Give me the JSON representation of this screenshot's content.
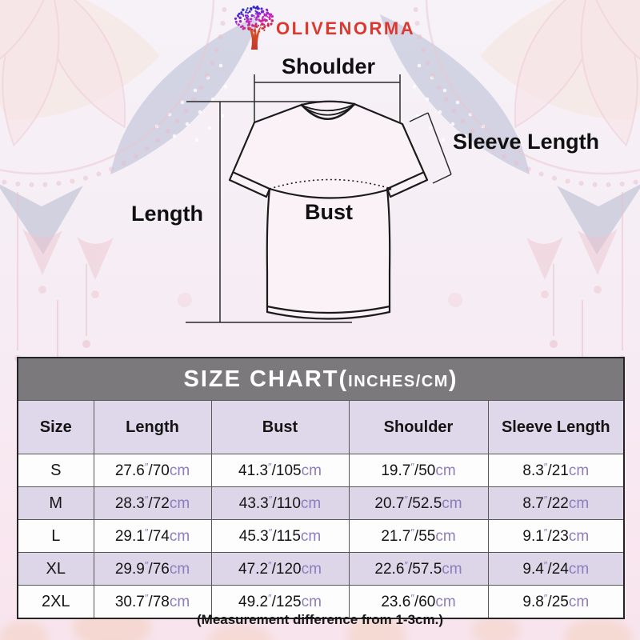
{
  "brand": {
    "name": "OLIVENORMA",
    "logo_icon": "gradient-tree-icon"
  },
  "diagram": {
    "shoulder_label": "Shoulder",
    "sleeve_length_label": "Sleeve Length",
    "length_label": "Length",
    "bust_label": "Bust"
  },
  "size_chart": {
    "title_main": "SIZE CHART(",
    "title_inner": "INCHES/CM",
    "title_close": ")",
    "columns": [
      "Size",
      "Length",
      "Bust",
      "Shoulder",
      "Sleeve Length"
    ],
    "units": {
      "inch_mark": "″",
      "slash": "/",
      "cm": "cm"
    },
    "rows": [
      {
        "size": "S",
        "length": {
          "in": "27.6",
          "cm": "70"
        },
        "bust": {
          "in": "41.3",
          "cm": "105"
        },
        "shoulder": {
          "in": "19.7",
          "cm": "50"
        },
        "sleeve": {
          "in": "8.3",
          "cm": "21"
        }
      },
      {
        "size": "M",
        "length": {
          "in": "28.3",
          "cm": "72"
        },
        "bust": {
          "in": "43.3",
          "cm": "110"
        },
        "shoulder": {
          "in": "20.7",
          "cm": "52.5"
        },
        "sleeve": {
          "in": "8.7",
          "cm": "22"
        }
      },
      {
        "size": "L",
        "length": {
          "in": "29.1",
          "cm": "74"
        },
        "bust": {
          "in": "45.3",
          "cm": "115"
        },
        "shoulder": {
          "in": "21.7",
          "cm": "55"
        },
        "sleeve": {
          "in": "9.1",
          "cm": "23"
        }
      },
      {
        "size": "XL",
        "length": {
          "in": "29.9",
          "cm": "76"
        },
        "bust": {
          "in": "47.2",
          "cm": "120"
        },
        "shoulder": {
          "in": "22.6",
          "cm": "57.5"
        },
        "sleeve": {
          "in": "9.4",
          "cm": "24"
        }
      },
      {
        "size": "2XL",
        "length": {
          "in": "30.7",
          "cm": "78"
        },
        "bust": {
          "in": "49.2",
          "cm": "125"
        },
        "shoulder": {
          "in": "23.6",
          "cm": "60"
        },
        "sleeve": {
          "in": "9.8",
          "cm": "25"
        }
      }
    ]
  },
  "note": "(Measurement difference from 1-3cm.)",
  "colors": {
    "brand_red": "#DC382E",
    "header_bar_gray": "#7B797B",
    "header_row_lavender": "#DFD8EA",
    "alt_row_lavender": "#DDD5E8",
    "unit_purple": "#8D7DBE",
    "text_black": "#141414"
  }
}
